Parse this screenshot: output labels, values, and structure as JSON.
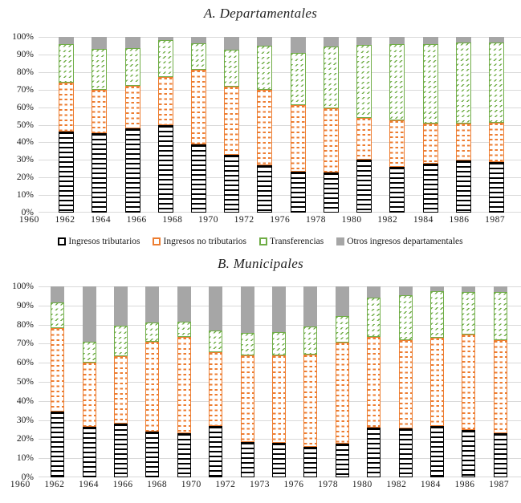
{
  "colors": {
    "tributarios": "#000000",
    "no_tributarios": "#ED7D31",
    "transferencias": "#70AD47",
    "otros": "#A6A6A6",
    "gridline": "#d9d9d9"
  },
  "chart_data": [
    {
      "id": "departamentales",
      "type": "bar",
      "subtype": "stacked-100",
      "title": "A. Departamentales",
      "xlabel": "",
      "ylabel": "",
      "ylim": [
        0,
        100
      ],
      "grid": true,
      "yticks": [
        "100%",
        "90%",
        "80%",
        "70%",
        "60%",
        "50%",
        "40%",
        "30%",
        "20%",
        "10%",
        "0%"
      ],
      "categories": [
        "1960",
        "1962",
        "1964",
        "1966",
        "1968",
        "1970",
        "1972",
        "1976",
        "1978",
        "1980",
        "1982",
        "1984",
        "1986",
        "1987"
      ],
      "series": [
        {
          "name": "Ingresos tributarios",
          "pattern": "hlines",
          "color": "#000000",
          "chip": "outline",
          "values": [
            46,
            45,
            48,
            50,
            39,
            33,
            27,
            23.5,
            23,
            30,
            26,
            28,
            29.5,
            29
          ]
        },
        {
          "name": "Ingresos no tributarios",
          "pattern": "dashes",
          "color": "#ED7D31",
          "chip": "outline",
          "values": [
            28,
            25,
            24,
            27,
            42.5,
            38.5,
            43,
            37.5,
            36.5,
            24,
            26.5,
            22.5,
            21,
            22
          ]
        },
        {
          "name": "Transferencias",
          "pattern": "diag",
          "color": "#70AD47",
          "chip": "outline",
          "values": [
            22,
            23,
            21.5,
            21,
            15,
            21,
            25,
            30,
            35,
            41.5,
            43.5,
            45.5,
            46.5,
            46
          ]
        },
        {
          "name": "Otros ingresos departamentales",
          "pattern": "solid",
          "color": "#A6A6A6",
          "chip": "solid",
          "values": [
            4,
            7,
            6.5,
            2,
            3.5,
            7.5,
            5,
            9,
            5.5,
            4.5,
            4,
            4,
            3,
            3
          ]
        }
      ]
    },
    {
      "id": "municipales",
      "type": "bar",
      "subtype": "stacked-100",
      "title": "B. Municipales",
      "xlabel": "",
      "ylabel": "",
      "ylim": [
        0,
        100
      ],
      "grid": true,
      "yticks": [
        "100%",
        "90%",
        "80%",
        "70%",
        "60%",
        "50%",
        "40%",
        "30%",
        "20%",
        "10%",
        "0%"
      ],
      "categories": [
        "1960",
        "1962",
        "1964",
        "1966",
        "1968",
        "1970",
        "1972",
        "1973",
        "1976",
        "1978",
        "1980",
        "1982",
        "1984",
        "1986",
        "1987"
      ],
      "series": [
        {
          "name": "Ingresos tributarios",
          "pattern": "hlines",
          "color": "#000000",
          "chip": "outline",
          "values": [
            34.5,
            26.5,
            28,
            24,
            23,
            27,
            18.5,
            18,
            16,
            17.5,
            26,
            25.5,
            27,
            25,
            23
          ]
        },
        {
          "name": "Ingresos no tributarios",
          "pattern": "dashes",
          "color": "#ED7D31",
          "chip": "outline",
          "values": [
            43.5,
            33.5,
            35.5,
            47,
            50.5,
            38.5,
            45.5,
            46,
            48.5,
            53,
            47.5,
            46.5,
            46,
            50,
            49
          ]
        },
        {
          "name": "Transferencias",
          "pattern": "diag",
          "color": "#70AD47",
          "chip": "outline",
          "values": [
            13.5,
            11,
            16,
            10,
            8,
            11.5,
            11.5,
            12,
            14.5,
            14,
            20.5,
            23.5,
            24.5,
            22,
            25
          ]
        },
        {
          "name": "Otros ingresos departamentales",
          "pattern": "solid",
          "color": "#A6A6A6",
          "chip": "solid",
          "values": [
            8.5,
            29,
            20.5,
            19,
            18.5,
            23,
            24.5,
            24,
            21,
            15.5,
            6,
            4.5,
            2.5,
            3,
            3
          ]
        }
      ]
    }
  ],
  "legend": {
    "items": [
      "Ingresos tributarios",
      "Ingresos no tributarios",
      "Transferencias",
      "Otros ingresos departamentales"
    ]
  }
}
